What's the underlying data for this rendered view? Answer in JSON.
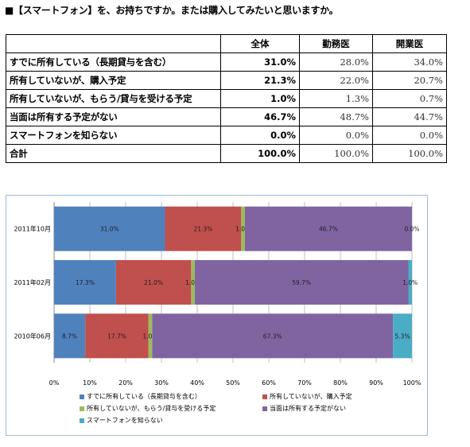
{
  "question": "■【スマートフォン】を、お持ちですか。または購入してみたいと思いますか。",
  "table": {
    "headers": [
      "",
      "全体",
      "勤務医",
      "開業医"
    ],
    "rows": [
      {
        "label": "すでに所有している（長期貸与を含む）",
        "total": "31.0%",
        "kinmu": "28.0%",
        "kaigyo": "34.0%"
      },
      {
        "label": "所有していないが、購入予定",
        "total": "21.3%",
        "kinmu": "22.0%",
        "kaigyo": "20.7%"
      },
      {
        "label": "所有していないが、もらう/貸与を受ける予定",
        "total": "1.0%",
        "kinmu": "1.3%",
        "kaigyo": "0.7%"
      },
      {
        "label": "当面は所有する予定がない",
        "total": "46.7%",
        "kinmu": "48.7%",
        "kaigyo": "44.7%"
      },
      {
        "label": "スマートフォンを知らない",
        "total": "0.0%",
        "kinmu": "0.0%",
        "kaigyo": "0.0%"
      },
      {
        "label": "合計",
        "total": "100.0%",
        "kinmu": "100.0%",
        "kaigyo": "100.0%"
      }
    ]
  },
  "chart_data": {
    "type": "bar",
    "orientation": "horizontal",
    "stacked": true,
    "categories": [
      "2011年10月",
      "2011年02月",
      "2010年06月"
    ],
    "series": [
      {
        "name": "すでに所有している（長期貸与を含む）",
        "color": "#4f81bd",
        "values": [
          31.0,
          17.3,
          8.7
        ],
        "labels": [
          "31.0%",
          "17.3%",
          "8.7%"
        ]
      },
      {
        "name": "所有していないが、購入予定",
        "color": "#c0504d",
        "values": [
          21.3,
          21.0,
          17.7
        ],
        "labels": [
          "21.3%",
          "21.0%",
          "17.7%"
        ]
      },
      {
        "name": "所有していないが、もらう/貸与を受ける予定",
        "color": "#9bbb59",
        "values": [
          1.0,
          1.0,
          1.0
        ],
        "labels": [
          "1.0%",
          "1.0%",
          "1.0%"
        ]
      },
      {
        "name": "当面は所有する予定がない",
        "color": "#8064a2",
        "values": [
          46.7,
          59.7,
          67.3
        ],
        "labels": [
          "46.7%",
          "59.7%",
          "67.3%"
        ]
      },
      {
        "name": "スマートフォンを知らない",
        "color": "#4bacc6",
        "values": [
          0.0,
          1.0,
          5.3
        ],
        "labels": [
          "0.0%",
          "1.0%",
          "5.3%"
        ]
      }
    ],
    "xticks": [
      "0%",
      "10%",
      "20%",
      "30%",
      "40%",
      "50%",
      "60%",
      "70%",
      "80%",
      "90%",
      "100%"
    ],
    "xlim": [
      0,
      100
    ],
    "grid": true,
    "legend_position": "bottom"
  }
}
